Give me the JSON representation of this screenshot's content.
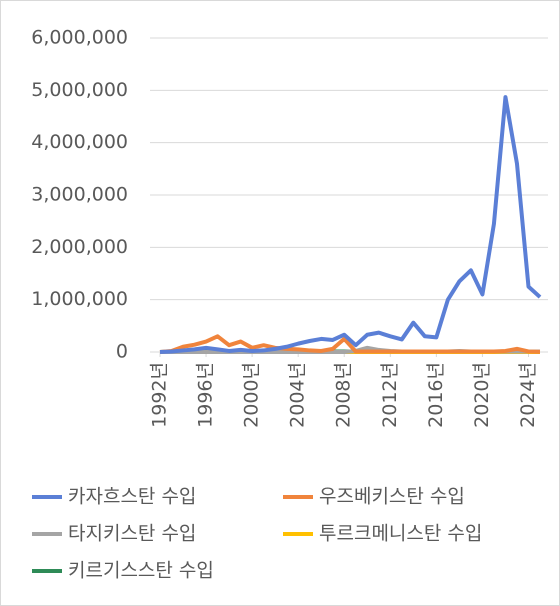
{
  "chart_data": {
    "type": "line",
    "x": [
      1992,
      1993,
      1994,
      1995,
      1996,
      1997,
      1998,
      1999,
      2000,
      2001,
      2002,
      2003,
      2004,
      2005,
      2006,
      2007,
      2008,
      2009,
      2010,
      2011,
      2012,
      2013,
      2014,
      2015,
      2016,
      2017,
      2018,
      2019,
      2020,
      2021,
      2022,
      2023,
      2024,
      2025
    ],
    "xlim": [
      1992,
      2025
    ],
    "xticks": [
      {
        "value": 1992,
        "label": "1992년"
      },
      {
        "value": 1996,
        "label": "1996년"
      },
      {
        "value": 2000,
        "label": "2000년"
      },
      {
        "value": 2004,
        "label": "2004년"
      },
      {
        "value": 2008,
        "label": "2008년"
      },
      {
        "value": 2012,
        "label": "2012년"
      },
      {
        "value": 2016,
        "label": "2016년"
      },
      {
        "value": 2020,
        "label": "2020년"
      },
      {
        "value": 2024,
        "label": "2024년"
      }
    ],
    "ylim": [
      0,
      6000000
    ],
    "yticks": [
      0,
      {
        "value": 1000000,
        "label": "1,000,000"
      },
      {
        "value": 2000000,
        "label": "2,000,000"
      },
      {
        "value": 3000000,
        "label": "3,000,000"
      },
      {
        "value": 4000000,
        "label": "4,000,000"
      },
      {
        "value": 5000000,
        "label": "5,000,000"
      },
      {
        "value": 6000000,
        "label": "6,000,000"
      }
    ],
    "grid": true,
    "legend": "bottom",
    "series": [
      {
        "name": "카자흐스탄 수입",
        "color": "#5b7fd6",
        "values": [
          0,
          10000,
          30000,
          50000,
          80000,
          50000,
          20000,
          40000,
          20000,
          30000,
          60000,
          100000,
          160000,
          210000,
          250000,
          230000,
          330000,
          130000,
          330000,
          370000,
          300000,
          240000,
          560000,
          300000,
          280000,
          1000000,
          1350000,
          1560000,
          1100000,
          2450000,
          4870000,
          3600000,
          1250000,
          1050000
        ]
      },
      {
        "name": "우즈베키스탄 수입",
        "color": "#f0843c",
        "values": [
          0,
          20000,
          100000,
          140000,
          200000,
          300000,
          130000,
          200000,
          80000,
          130000,
          80000,
          60000,
          50000,
          30000,
          20000,
          60000,
          250000,
          10000,
          10000,
          10000,
          10000,
          10000,
          10000,
          10000,
          10000,
          10000,
          10000,
          10000,
          10000,
          10000,
          20000,
          60000,
          10000,
          5000
        ]
      },
      {
        "name": "타지키스탄 수입",
        "color": "#a5a5a5",
        "values": [
          0,
          0,
          0,
          0,
          0,
          0,
          0,
          0,
          0,
          0,
          0,
          0,
          0,
          0,
          0,
          0,
          0,
          20000,
          80000,
          40000,
          20000,
          10000,
          10000,
          10000,
          10000,
          10000,
          20000,
          10000,
          10000,
          10000,
          10000,
          10000,
          10000,
          10000
        ]
      },
      {
        "name": "투르크메니스탄 수입",
        "color": "#ffc000",
        "values": [
          0,
          0,
          0,
          0,
          0,
          0,
          0,
          0,
          0,
          0,
          0,
          0,
          0,
          0,
          0,
          0,
          0,
          0,
          0,
          0,
          0,
          0,
          0,
          0,
          0,
          0,
          0,
          0,
          0,
          0,
          0,
          0,
          0,
          0
        ]
      },
      {
        "name": "키르기스스탄 수입",
        "color": "#2e8b57",
        "values": [
          0,
          5000,
          10000,
          10000,
          10000,
          10000,
          10000,
          10000,
          10000,
          10000,
          10000,
          10000,
          10000,
          10000,
          10000,
          10000,
          10000,
          10000,
          10000,
          10000,
          10000,
          10000,
          10000,
          10000,
          10000,
          10000,
          10000,
          10000,
          10000,
          10000,
          10000,
          10000,
          10000,
          10000
        ]
      }
    ]
  }
}
